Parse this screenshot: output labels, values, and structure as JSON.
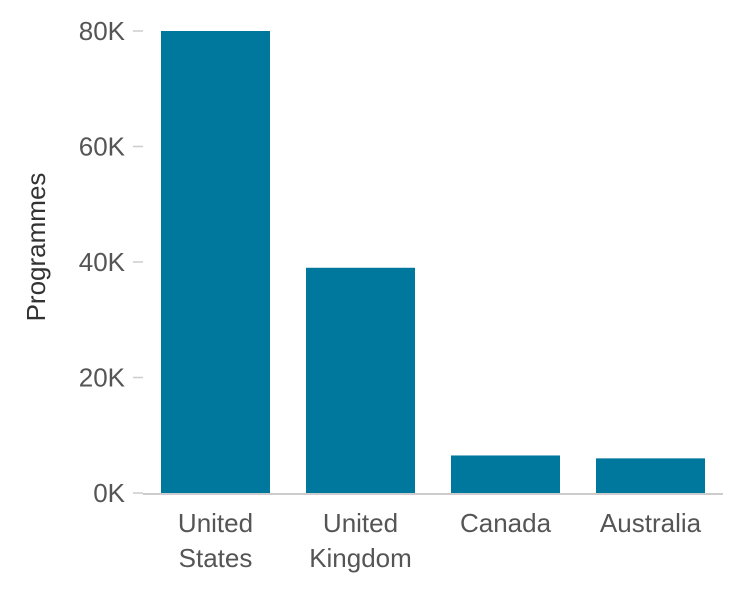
{
  "chart_data": {
    "type": "bar",
    "categories": [
      "United States",
      "United Kingdom",
      "Canada",
      "Australia"
    ],
    "category_labels": [
      [
        "United",
        "States"
      ],
      [
        "United",
        "Kingdom"
      ],
      [
        "Canada"
      ],
      [
        "Australia"
      ]
    ],
    "values": [
      80000,
      39000,
      6500,
      6000
    ],
    "ylabel": "Programmes",
    "ylim": [
      0,
      80000
    ],
    "y_ticks": [
      0,
      20000,
      40000,
      60000,
      80000
    ],
    "y_tick_labels": [
      "0K",
      "20K",
      "40K",
      "60K",
      "80K"
    ],
    "grid": false,
    "legend": "none",
    "colors": {
      "bar": "#00789d",
      "axis": "#cccccc",
      "tick_mark": "#cccccc"
    }
  }
}
